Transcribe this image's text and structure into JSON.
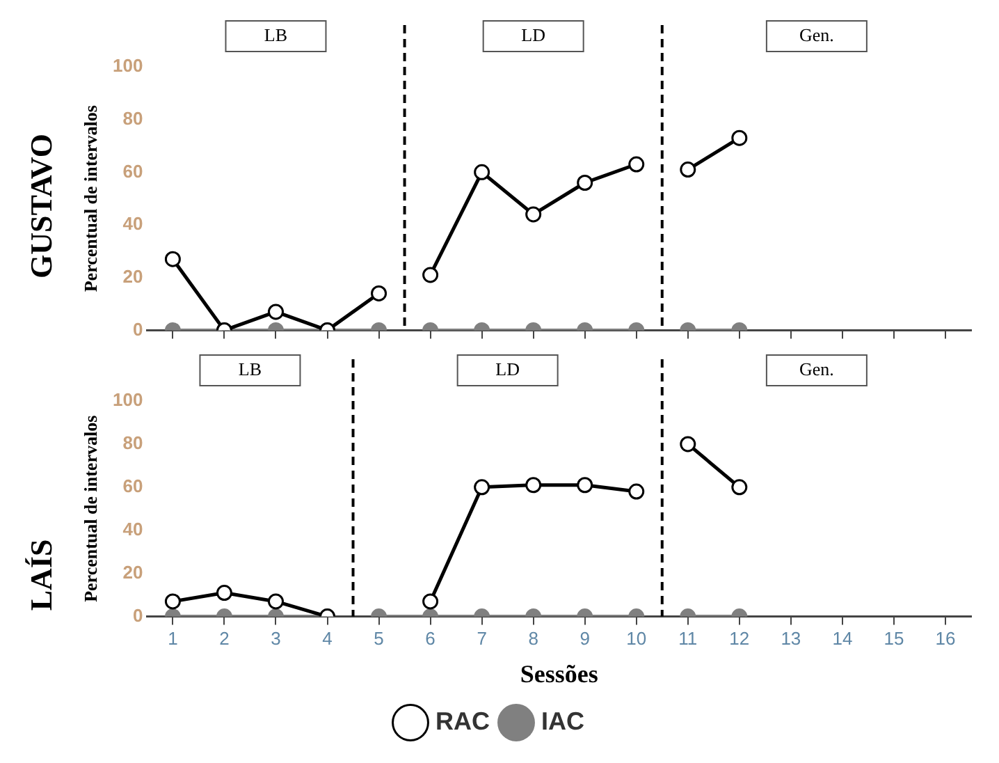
{
  "chart_data": [
    {
      "type": "line",
      "title": "GUSTAVO",
      "ylabel": "Percentual de intervalos",
      "annotations": [
        "LB",
        "LD",
        "Gen."
      ],
      "x": [
        1,
        2,
        3,
        4,
        5,
        6,
        7,
        8,
        9,
        10,
        11,
        12
      ],
      "xlim": [
        0.5,
        16.5
      ],
      "xticks": [
        1,
        2,
        3,
        4,
        5,
        6,
        7,
        8,
        9,
        10,
        11,
        12,
        13,
        14,
        15,
        16
      ],
      "ylim": [
        0,
        100
      ],
      "yticks": [
        0,
        20,
        40,
        60,
        80,
        100
      ],
      "tick_labels": "y",
      "grid": false,
      "legend": false,
      "marker": "circle",
      "ref_lines": [
        {
          "axis": "x",
          "value": 5.5,
          "line_style": "dashed"
        },
        {
          "axis": "x",
          "value": 10.5,
          "line_style": "dashed"
        }
      ],
      "series": [
        {
          "color": "#000000",
          "values": [
            27,
            0,
            7,
            0,
            14,
            21,
            60,
            44,
            56,
            63,
            61,
            73
          ]
        },
        {
          "color": "#808080",
          "values": [
            0,
            0,
            0,
            0,
            0,
            0,
            0,
            0,
            0,
            0,
            0,
            0
          ]
        }
      ]
    },
    {
      "type": "line",
      "title": "LAÍS",
      "xlabel": "Sessões",
      "ylabel": "Percentual de intervalos",
      "annotations": [
        "LB",
        "LD",
        "Gen."
      ],
      "x": [
        1,
        2,
        3,
        4,
        5,
        6,
        7,
        8,
        9,
        10,
        11,
        12
      ],
      "xlim": [
        0.5,
        16.5
      ],
      "xticks": [
        1,
        2,
        3,
        4,
        5,
        6,
        7,
        8,
        9,
        10,
        11,
        12,
        13,
        14,
        15,
        16
      ],
      "ylim": [
        0,
        100
      ],
      "yticks": [
        0,
        20,
        40,
        60,
        80,
        100
      ],
      "grid": false,
      "legend": "bottom",
      "marker": "circle",
      "ref_lines": [
        {
          "axis": "x",
          "value": 4.5,
          "line_style": "dashed"
        },
        {
          "axis": "x",
          "value": 10.5,
          "line_style": "dashed"
        }
      ],
      "series": [
        {
          "name": "RAC",
          "color": "#000000",
          "values": [
            7,
            11,
            7,
            0,
            null,
            7,
            60,
            61,
            61,
            58,
            80,
            60
          ]
        },
        {
          "name": "IAC",
          "color": "#808080",
          "values": [
            0,
            0,
            0,
            0,
            0,
            0,
            0,
            0,
            0,
            0,
            0,
            0
          ]
        }
      ]
    }
  ]
}
